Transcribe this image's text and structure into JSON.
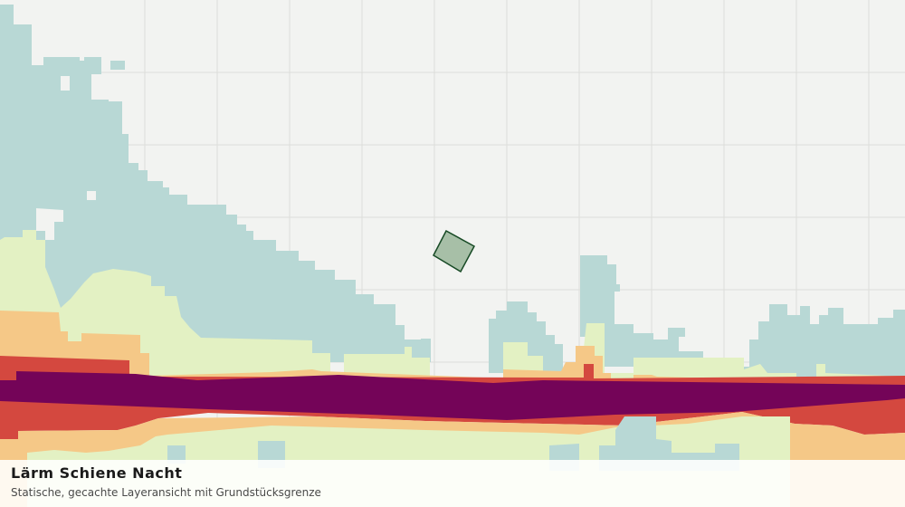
{
  "map": {
    "title": "Lärm Schiene Nacht",
    "subtitle": "Statische, gecachte Layeransicht mit Grundstücksgrenze"
  }
}
